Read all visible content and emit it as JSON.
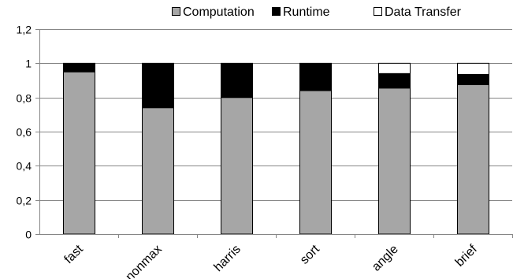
{
  "chart_data": {
    "type": "bar",
    "stacked": true,
    "categories": [
      "fast",
      "nonmax",
      "harris",
      "sort",
      "angle",
      "brief"
    ],
    "series": [
      {
        "name": "Computation",
        "color": "#a6a6a6",
        "values": [
          0.95,
          0.74,
          0.8,
          0.84,
          0.855,
          0.875
        ]
      },
      {
        "name": "Runtime",
        "color": "#000000",
        "values": [
          0.05,
          0.26,
          0.2,
          0.16,
          0.085,
          0.06
        ]
      },
      {
        "name": "Data Transfer",
        "color": "#ffffff",
        "values": [
          0.0,
          0.0,
          0.0,
          0.0,
          0.06,
          0.065
        ]
      }
    ],
    "ylim": [
      0,
      1.2
    ],
    "yticks": [
      0,
      0.2,
      0.4,
      0.6,
      0.8,
      1,
      1.2
    ],
    "ytick_labels": [
      "0",
      "0,2",
      "0,4",
      "0,6",
      "0,8",
      "1",
      "1,2"
    ],
    "grid": true,
    "legend_position": "top",
    "title": "",
    "xlabel": "",
    "ylabel": ""
  }
}
